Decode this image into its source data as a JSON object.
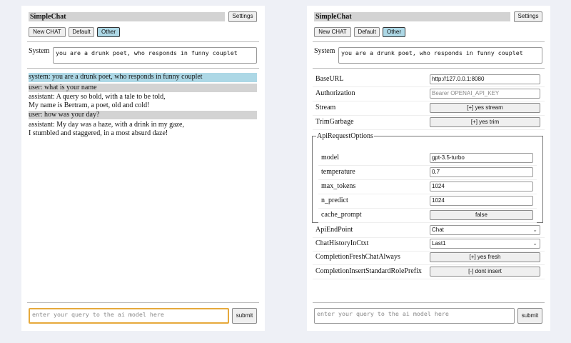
{
  "app_title": "SimpleChat",
  "settings_label": "Settings",
  "buttons": {
    "new_chat": "New CHAT",
    "default": "Default",
    "other": "Other"
  },
  "system": {
    "label": "System",
    "value": "you are a drunk poet, who responds in funny couplet"
  },
  "messages": [
    {
      "role": "system",
      "lines": [
        "system: you are a drunk poet, who responds in funny couplet"
      ]
    },
    {
      "role": "user",
      "lines": [
        "user: what is your name"
      ]
    },
    {
      "role": "assistant",
      "lines": [
        "assistant: A query so bold, with a tale to be told,",
        "My name is Bertram, a poet, old and cold!"
      ]
    },
    {
      "role": "user",
      "lines": [
        "user: how was your day?"
      ]
    },
    {
      "role": "assistant",
      "lines": [
        "assistant: My day was a haze, with a drink in my gaze,",
        "I stumbled and staggered, in a most absurd daze!"
      ]
    }
  ],
  "query": {
    "placeholder": "enter your query to the ai model here",
    "submit": "submit"
  },
  "settings": {
    "base_url": {
      "label": "BaseURL",
      "value": "http://127.0.0.1:8080"
    },
    "authorization": {
      "label": "Authorization",
      "placeholder": "Bearer OPENAI_API_KEY"
    },
    "stream": {
      "label": "Stream",
      "value": "[+] yes stream"
    },
    "trim_garbage": {
      "label": "TrimGarbage",
      "value": "[+] yes trim"
    },
    "api_request_options": {
      "legend": "ApiRequestOptions",
      "model": {
        "label": "model",
        "value": "gpt-3.5-turbo"
      },
      "temperature": {
        "label": "temperature",
        "value": "0.7"
      },
      "max_tokens": {
        "label": "max_tokens",
        "value": "1024"
      },
      "n_predict": {
        "label": "n_predict",
        "value": "1024"
      },
      "cache_prompt": {
        "label": "cache_prompt",
        "value": "false"
      }
    },
    "api_endpoint": {
      "label": "ApiEndPoint",
      "value": "Chat"
    },
    "chat_history": {
      "label": "ChatHistoryInCtxt",
      "value": "Last1"
    },
    "fresh_chat": {
      "label": "CompletionFreshChatAlways",
      "value": "[+] yes fresh"
    },
    "role_prefix": {
      "label": "CompletionInsertStandardRolePrefix",
      "value": "[-] dont insert"
    }
  }
}
